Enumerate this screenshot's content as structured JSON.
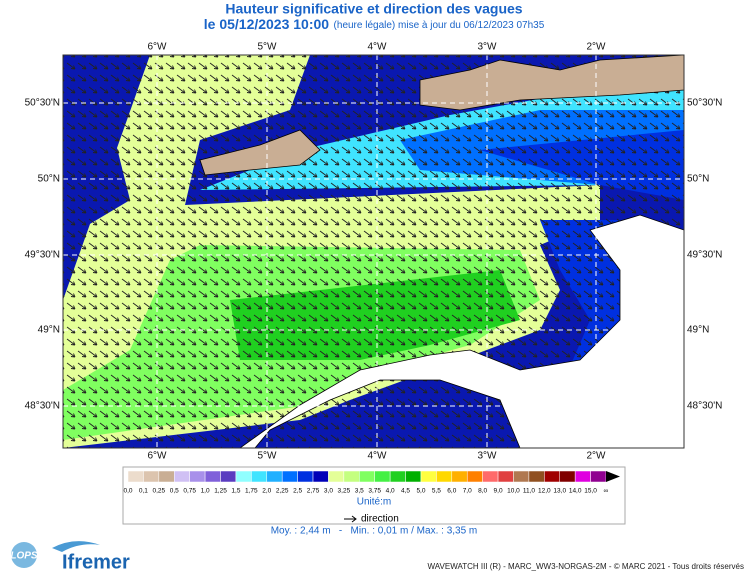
{
  "header": {
    "title": "Hauteur significative et direction des vagues",
    "date": "le 05/12/2023 10:00",
    "update": "(heure légale) mise à jour du 06/12/2023 07h35"
  },
  "map": {
    "lon_labels": [
      "6°W",
      "5°W",
      "4°W",
      "3°W",
      "2°W"
    ],
    "lat_labels": [
      "50°30'N",
      "50°N",
      "49°30'N",
      "49°N",
      "48°30'N"
    ]
  },
  "legend": {
    "labels": [
      "0,0",
      "0,1",
      "0,25",
      "0,5",
      "0,75",
      "1,0",
      "1,25",
      "1,5",
      "1,75",
      "2,0",
      "2,25",
      "2,5",
      "2,75",
      "3,0",
      "3,25",
      "3,5",
      "3,75",
      "4,0",
      "4,5",
      "5,0",
      "5,5",
      "6,0",
      "7,0",
      "8,0",
      "9,0",
      "10,0",
      "11,0",
      "12,0",
      "13,0",
      "14,0",
      "15,0",
      "∞"
    ],
    "colors": [
      "#ecdccc",
      "#dcc4ae",
      "#c9ae94",
      "#d0c0f4",
      "#a890ea",
      "#8060da",
      "#5a3cc0",
      "#90ffff",
      "#40e4ff",
      "#20b0ff",
      "#0070ff",
      "#0030e0",
      "#0000b8",
      "#e4ff98",
      "#c4ff80",
      "#80ff60",
      "#44f044",
      "#20d020",
      "#00b000",
      "#ffff40",
      "#ffd800",
      "#ffb000",
      "#ff8000",
      "#ff6a6a",
      "#e04040",
      "#b07850",
      "#905020",
      "#a00000",
      "#800000",
      "#e000e0",
      "#900090"
    ],
    "unit": "Unité:m",
    "direction": "direction",
    "stats": "Moy. : 2,44 m   -   Min. : 0,01 m / Max. : 3,35 m"
  },
  "footer": {
    "credit": "WAVEWATCH III (R) - MARC_WW3-NORGAS-2M - © MARC 2021 - Tous droits réservés",
    "logo1": "LOPS",
    "logo2": "Ifremer"
  }
}
